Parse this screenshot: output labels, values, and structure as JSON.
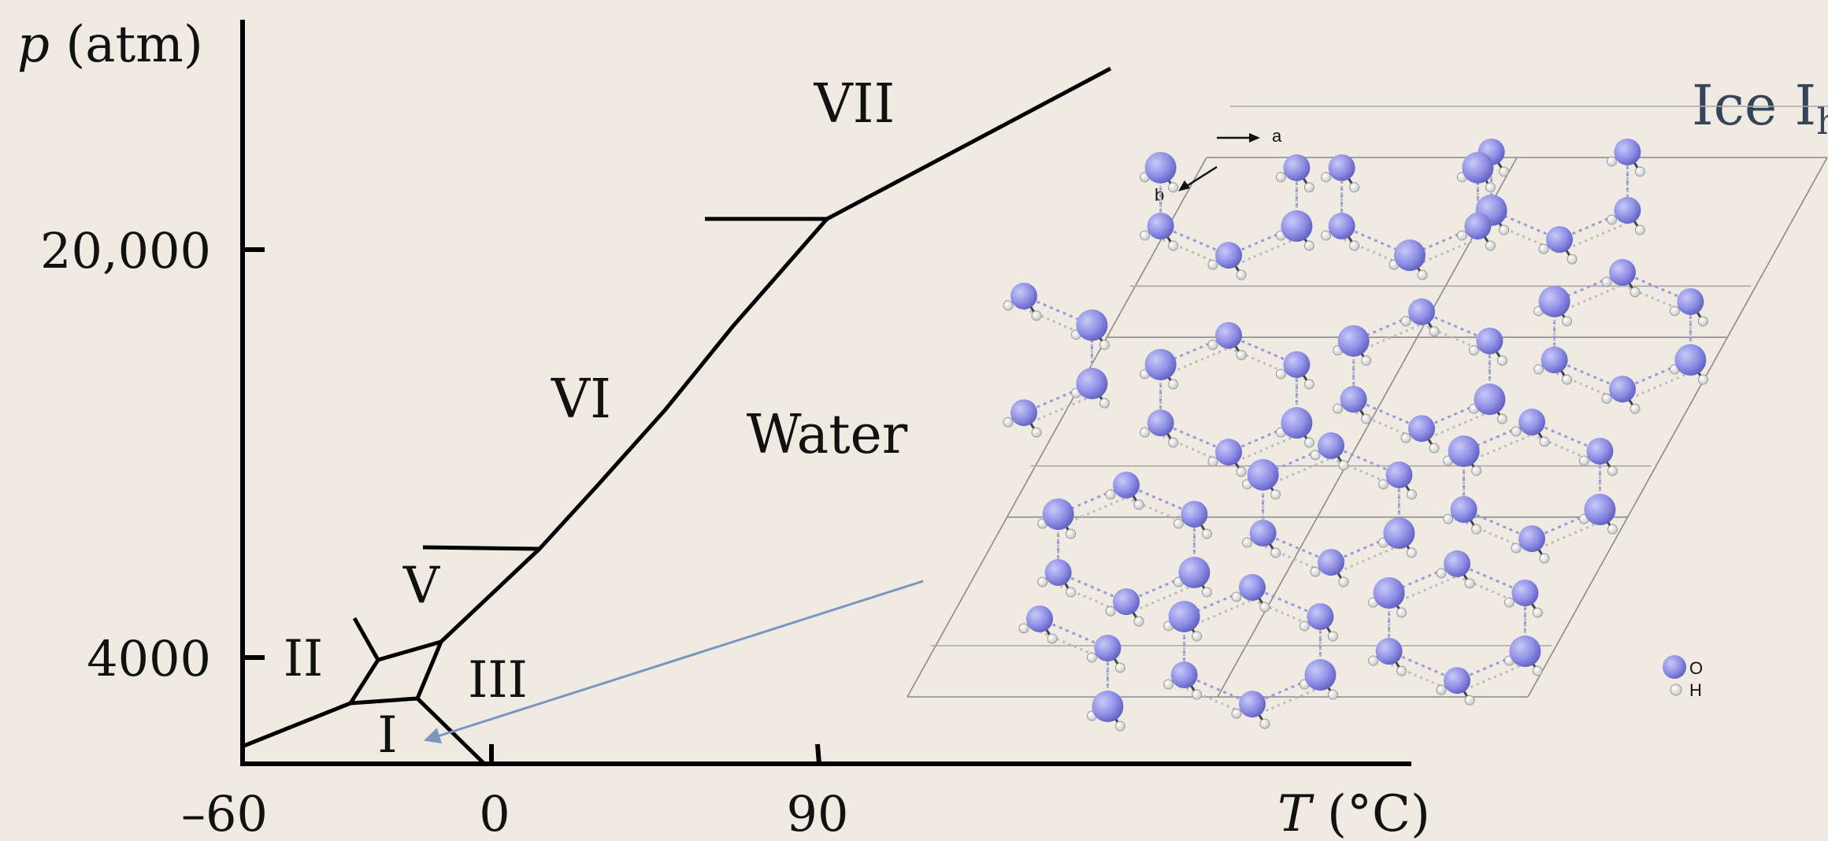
{
  "diagram": {
    "y_axis_label_var": "p",
    "y_axis_label_unit": " (atm)",
    "x_axis_label_var": "T",
    "x_axis_label_unit": " (°C)",
    "y_ticks": [
      "20,000",
      "4000"
    ],
    "x_ticks": [
      "–60",
      "0",
      "90"
    ],
    "phases": {
      "vii": "VII",
      "vi": "VI",
      "water": "Water",
      "v": "V",
      "ii": "II",
      "iii": "III",
      "i": "I"
    }
  },
  "inset": {
    "title_main": "Ice I",
    "title_sub": "h",
    "axis_a": "a",
    "axis_b": "b",
    "legend_o": "O",
    "legend_h": "H",
    "colors": {
      "oxygen": "#8e8ee6",
      "hydrogen": "#f4f4f4",
      "bond": "#444444",
      "hbond": "#9a9ad8"
    }
  },
  "colors": {
    "background": "#efebe2",
    "arrow": "#7a96c0"
  }
}
